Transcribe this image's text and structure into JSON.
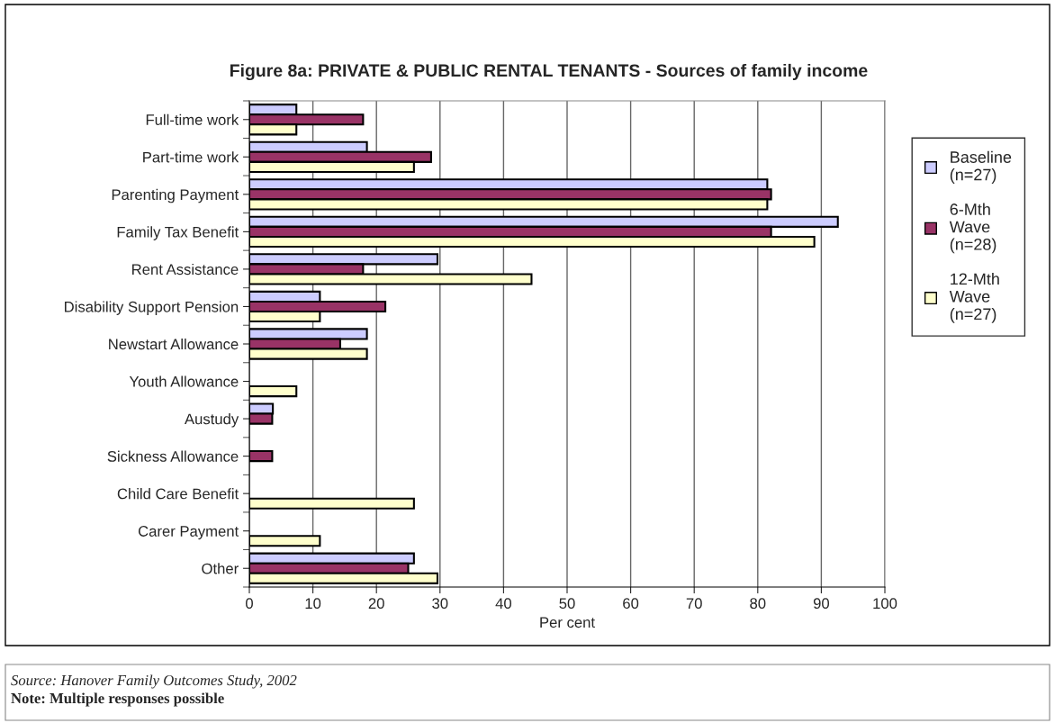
{
  "chart_data": {
    "type": "bar",
    "orientation": "horizontal",
    "title": "Figure 8a: PRIVATE & PUBLIC RENTAL TENANTS - Sources of family income",
    "xlabel": "Per cent",
    "categories": [
      "Full-time work",
      "Part-time work",
      "Parenting Payment",
      "Family Tax Benefit",
      "Rent Assistance",
      "Disability Support Pension",
      "Newstart Allowance",
      "Youth Allowance",
      "Austudy",
      "Sickness Allowance",
      "Child Care Benefit",
      "Carer Payment",
      "Other"
    ],
    "series": [
      {
        "name": "Baseline (n=27)",
        "color": "#ccccff",
        "values": [
          7.4,
          18.5,
          81.5,
          92.6,
          29.6,
          11.1,
          18.5,
          null,
          3.7,
          null,
          null,
          null,
          25.9
        ]
      },
      {
        "name": "6-Mth Wave (n=28)",
        "color": "#993366",
        "values": [
          17.9,
          28.6,
          82.1,
          82.1,
          17.9,
          21.4,
          14.3,
          null,
          3.6,
          3.6,
          null,
          null,
          25.0
        ]
      },
      {
        "name": "12-Mth Wave (n=27)",
        "color": "#ffffcc",
        "values": [
          7.4,
          25.9,
          81.5,
          88.9,
          44.4,
          11.1,
          18.5,
          7.4,
          null,
          null,
          25.9,
          11.1,
          29.6
        ]
      }
    ],
    "xlim": [
      0,
      100
    ],
    "xticks": [
      0,
      10,
      20,
      30,
      40,
      50,
      60,
      70,
      80,
      90,
      100
    ],
    "grid": "x",
    "legend": "right",
    "annotations": [
      "Source: Hanover Family Outcomes Study, 2002",
      "Note: Multiple responses possible"
    ]
  }
}
